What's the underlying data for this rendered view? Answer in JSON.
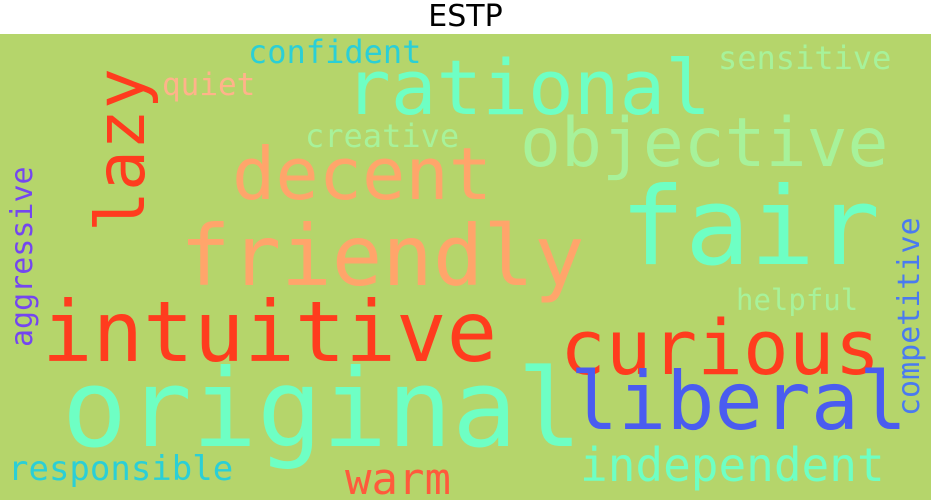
{
  "title": "ESTP",
  "colors": {
    "background": "#b5d56b",
    "mint": "#6effc4",
    "orange": "#ffa56b",
    "red": "#ff3c1e",
    "blue": "#4a5cf0",
    "teal": "#2bcfd6",
    "purple": "#7446f0",
    "light_green": "#a7f29a",
    "peach": "#ffb38a"
  },
  "words": {
    "fair": "fair",
    "original": "original",
    "intuitive": "intuitive",
    "friendly": "friendly",
    "curious": "curious",
    "liberal": "liberal",
    "rational": "rational",
    "objective": "objective",
    "decent": "decent",
    "lazy": "lazy",
    "independent": "independent",
    "warm": "warm",
    "competitive": "competitive",
    "responsible": "responsible",
    "aggressive": "aggressive",
    "confident": "confident",
    "sensitive": "sensitive",
    "creative": "creative",
    "helpful": "helpful",
    "quiet": "quiet"
  }
}
